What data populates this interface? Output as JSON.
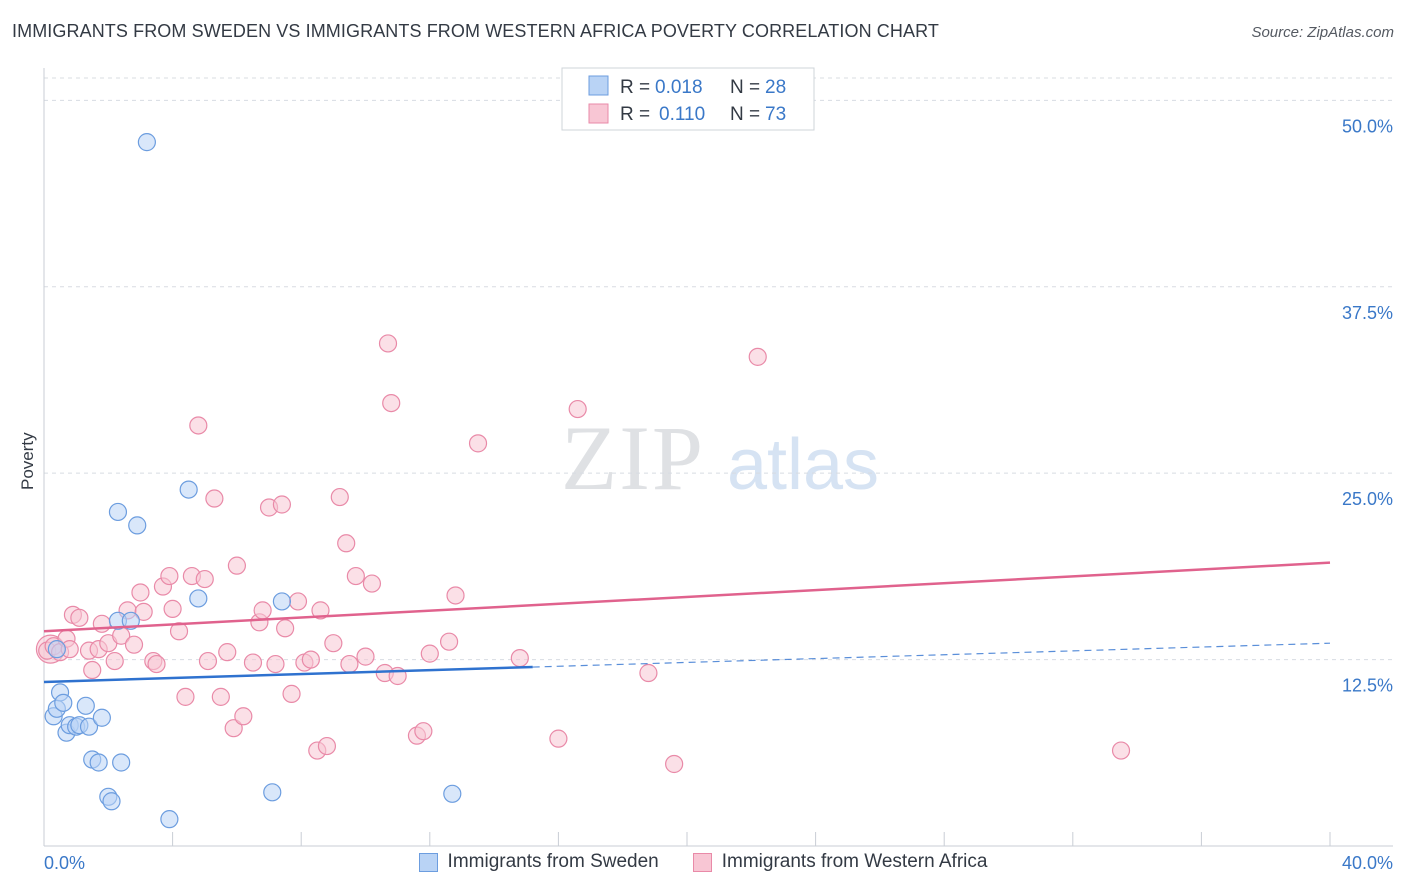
{
  "title": "IMMIGRANTS FROM SWEDEN VS IMMIGRANTS FROM WESTERN AFRICA POVERTY CORRELATION CHART",
  "source": "Source: ZipAtlas.com",
  "watermark": {
    "zip": "ZIP",
    "atlas": "atlas"
  },
  "colors": {
    "sweden_fill": "#b9d3f5",
    "sweden_stroke": "#6c9ddf",
    "sweden_line": "#2f72cf",
    "wafrica_fill": "#f8c6d4",
    "wafrica_stroke": "#e98aa8",
    "wafrica_line": "#e0628d",
    "tick_text": "#3a78c8",
    "grid": "#d8dce2"
  },
  "legend": {
    "rows": [
      {
        "r_label": "R =",
        "r_value": "0.018",
        "n_label": "N =",
        "n_value": "28"
      },
      {
        "r_label": "R =",
        "r_value": "0.110",
        "n_label": "N =",
        "n_value": "73"
      }
    ]
  },
  "chart_data": {
    "type": "scatter",
    "title": "IMMIGRANTS FROM SWEDEN VS IMMIGRANTS FROM WESTERN AFRICA POVERTY CORRELATION CHART",
    "xlabel": "",
    "ylabel": "Poverty",
    "xlim": [
      0,
      40
    ],
    "ylim": [
      0,
      51.5
    ],
    "x_tick_labels": [
      "0.0%",
      "40.0%"
    ],
    "y_ticks": [
      {
        "value": 12.5,
        "label": "12.5%"
      },
      {
        "value": 25.0,
        "label": "25.0%"
      },
      {
        "value": 37.5,
        "label": "37.5%"
      },
      {
        "value": 50.0,
        "label": "50.0%"
      }
    ],
    "series": [
      {
        "name": "Immigrants from Sweden",
        "r": 0.018,
        "n": 28,
        "trend": {
          "x0": 0,
          "y0": 11.0,
          "x1": 15.2,
          "y1": 12.0,
          "dash_x1": 40,
          "dash_y1": 13.6
        },
        "points": [
          [
            3.2,
            47.2
          ],
          [
            0.4,
            13.2
          ],
          [
            0.3,
            8.7
          ],
          [
            0.4,
            9.2
          ],
          [
            0.5,
            10.3
          ],
          [
            0.6,
            9.6
          ],
          [
            0.7,
            7.6
          ],
          [
            0.8,
            8.1
          ],
          [
            1.0,
            8.0
          ],
          [
            1.1,
            8.1
          ],
          [
            1.3,
            9.4
          ],
          [
            1.4,
            8.0
          ],
          [
            1.8,
            8.6
          ],
          [
            1.5,
            5.8
          ],
          [
            1.7,
            5.6
          ],
          [
            2.4,
            5.6
          ],
          [
            2.0,
            3.3
          ],
          [
            2.1,
            3.0
          ],
          [
            2.3,
            15.1
          ],
          [
            2.7,
            15.1
          ],
          [
            2.3,
            22.4
          ],
          [
            2.9,
            21.5
          ],
          [
            4.5,
            23.9
          ],
          [
            4.8,
            16.6
          ],
          [
            7.4,
            16.4
          ],
          [
            3.9,
            1.8
          ],
          [
            7.1,
            3.6
          ],
          [
            12.7,
            3.5
          ]
        ]
      },
      {
        "name": "Immigrants from Western Africa",
        "r": 0.11,
        "n": 73,
        "trend": {
          "x0": 0,
          "y0": 14.4,
          "x1": 40,
          "y1": 19.0
        },
        "points": [
          [
            0.1,
            13.1
          ],
          [
            0.3,
            13.4
          ],
          [
            0.5,
            13.0
          ],
          [
            0.7,
            13.9
          ],
          [
            0.8,
            13.2
          ],
          [
            0.9,
            15.5
          ],
          [
            1.1,
            15.3
          ],
          [
            1.4,
            13.1
          ],
          [
            1.5,
            11.8
          ],
          [
            1.7,
            13.2
          ],
          [
            1.8,
            14.9
          ],
          [
            2.0,
            13.6
          ],
          [
            2.2,
            12.4
          ],
          [
            2.4,
            14.1
          ],
          [
            2.6,
            15.8
          ],
          [
            2.8,
            13.5
          ],
          [
            3.0,
            17.0
          ],
          [
            3.1,
            15.7
          ],
          [
            3.4,
            12.4
          ],
          [
            3.5,
            12.2
          ],
          [
            3.7,
            17.4
          ],
          [
            3.9,
            18.1
          ],
          [
            4.0,
            15.9
          ],
          [
            4.2,
            14.4
          ],
          [
            4.4,
            10.0
          ],
          [
            4.6,
            18.1
          ],
          [
            4.8,
            28.2
          ],
          [
            5.0,
            17.9
          ],
          [
            5.1,
            12.4
          ],
          [
            5.3,
            23.3
          ],
          [
            5.5,
            10.0
          ],
          [
            5.7,
            13.0
          ],
          [
            5.9,
            7.9
          ],
          [
            6.0,
            18.8
          ],
          [
            6.2,
            8.7
          ],
          [
            6.5,
            12.3
          ],
          [
            6.7,
            15.0
          ],
          [
            6.8,
            15.8
          ],
          [
            7.0,
            22.7
          ],
          [
            7.2,
            12.2
          ],
          [
            7.4,
            22.9
          ],
          [
            7.5,
            14.6
          ],
          [
            7.7,
            10.2
          ],
          [
            7.9,
            16.4
          ],
          [
            8.1,
            12.3
          ],
          [
            8.3,
            12.5
          ],
          [
            8.5,
            6.4
          ],
          [
            8.6,
            15.8
          ],
          [
            8.8,
            6.7
          ],
          [
            9.0,
            13.6
          ],
          [
            9.2,
            23.4
          ],
          [
            9.4,
            20.3
          ],
          [
            9.5,
            12.2
          ],
          [
            9.7,
            18.1
          ],
          [
            10.0,
            12.7
          ],
          [
            10.2,
            17.6
          ],
          [
            10.7,
            33.7
          ],
          [
            10.8,
            29.7
          ],
          [
            10.6,
            11.6
          ],
          [
            11.0,
            11.4
          ],
          [
            11.6,
            7.4
          ],
          [
            11.8,
            7.7
          ],
          [
            12.0,
            12.9
          ],
          [
            12.6,
            13.7
          ],
          [
            12.8,
            16.8
          ],
          [
            13.5,
            27.0
          ],
          [
            14.8,
            12.6
          ],
          [
            16.0,
            7.2
          ],
          [
            16.6,
            29.3
          ],
          [
            18.8,
            11.6
          ],
          [
            19.6,
            5.5
          ],
          [
            22.2,
            32.8
          ],
          [
            33.5,
            6.4
          ]
        ]
      }
    ]
  }
}
